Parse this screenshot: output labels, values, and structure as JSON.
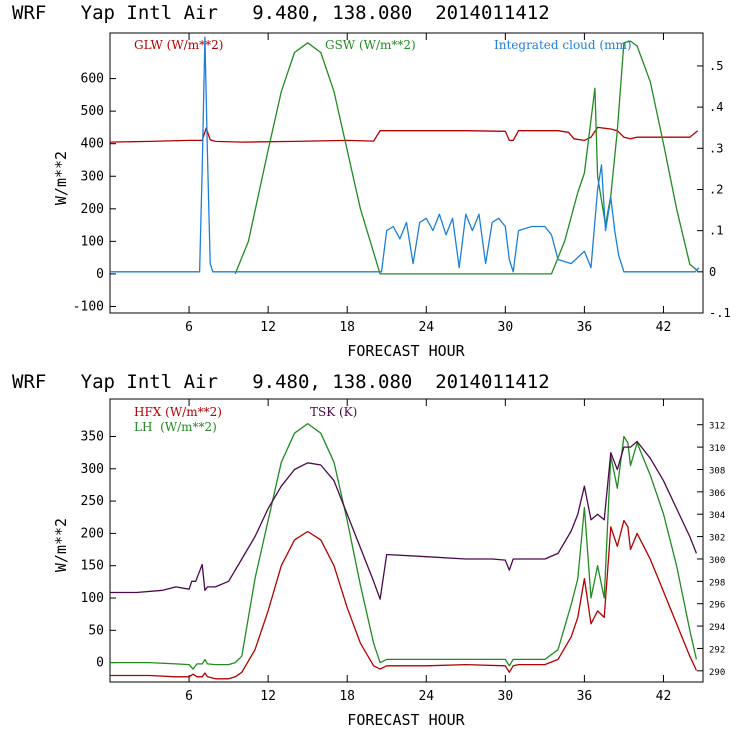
{
  "chart_data": [
    {
      "type": "line",
      "title": "WRF   Yap Intl Air   9.480, 138.080  2014011412",
      "xlabel": "FORECAST HOUR",
      "ylabel": "W/m**2",
      "xlim": [
        0,
        45
      ],
      "ylim": [
        -120,
        740
      ],
      "y2lim": [
        -0.1,
        0.58
      ],
      "xticks": [
        6,
        12,
        18,
        24,
        30,
        36,
        42
      ],
      "yticks": [
        -100,
        0,
        100,
        200,
        300,
        400,
        500,
        600
      ],
      "y2ticks": [
        -0.1,
        0,
        0.1,
        0.2,
        0.3,
        0.4,
        0.5
      ],
      "xtick_labels": [
        "6",
        "12",
        "18",
        "24",
        "30",
        "36",
        "42"
      ],
      "ytick_labels": [
        "-100",
        "0",
        "100",
        "200",
        "300",
        "400",
        "500",
        "600"
      ],
      "y2tick_labels": [
        "-.1",
        "0",
        ".1",
        ".2",
        ".3",
        ".4",
        ".5"
      ],
      "legend": [
        {
          "label": "GLW (W/m**2)",
          "color": "#b30000"
        },
        {
          "label": "GSW (W/m**2)",
          "color": "#228b22"
        },
        {
          "label": "Integrated cloud (mm)",
          "color": "#1e7fd8"
        }
      ],
      "series": [
        {
          "name": "GLW",
          "color": "#b30000",
          "axis": "left",
          "x": [
            0,
            3,
            6,
            7,
            7.3,
            7.6,
            8,
            10,
            14,
            18,
            20,
            20.5,
            24,
            27,
            30,
            30.3,
            30.6,
            31,
            34,
            34.8,
            35.2,
            36,
            36.5,
            37,
            38,
            38.5,
            39,
            39.5,
            40,
            41,
            44,
            44.6
          ],
          "y": [
            405,
            407,
            410,
            410,
            448,
            412,
            407,
            405,
            407,
            410,
            408,
            440,
            440,
            440,
            438,
            410,
            410,
            440,
            440,
            435,
            415,
            410,
            420,
            450,
            445,
            440,
            420,
            415,
            420,
            420,
            420,
            440
          ]
        },
        {
          "name": "GSW",
          "color": "#228b22",
          "axis": "left",
          "x": [
            9.5,
            10.5,
            12,
            13,
            14,
            15,
            16,
            17,
            18,
            19,
            20.5,
            33.5,
            34.5,
            35.5,
            36,
            36.8,
            37,
            37.6,
            38,
            38.5,
            39,
            39.5,
            40,
            41,
            42,
            43,
            44,
            44.6
          ],
          "y": [
            0,
            100,
            380,
            560,
            680,
            710,
            680,
            560,
            380,
            200,
            0,
            0,
            100,
            250,
            310,
            570,
            300,
            150,
            240,
            440,
            710,
            715,
            700,
            590,
            400,
            200,
            30,
            10
          ]
        },
        {
          "name": "Integrated cloud",
          "color": "#1e7fd8",
          "axis": "right",
          "x": [
            0,
            6.8,
            7.0,
            7.2,
            7.4,
            7.6,
            7.8,
            20.6,
            21,
            21.5,
            22,
            22.5,
            23,
            23.5,
            24,
            24.5,
            25,
            25.5,
            26,
            26.5,
            27,
            27.5,
            28,
            28.5,
            29,
            29.5,
            30,
            30.3,
            30.6,
            31,
            32,
            33,
            33.5,
            34,
            35,
            36,
            36.5,
            37,
            37.3,
            37.6,
            38,
            38.3,
            38.6,
            39,
            39.5,
            44.4,
            44.7
          ],
          "y": [
            0,
            0,
            0.25,
            0.57,
            0.28,
            0.02,
            0,
            0,
            0.1,
            0.11,
            0.08,
            0.12,
            0.02,
            0.12,
            0.13,
            0.1,
            0.14,
            0.09,
            0.13,
            0.01,
            0.14,
            0.1,
            0.14,
            0.02,
            0.12,
            0.13,
            0.11,
            0.03,
            0,
            0.1,
            0.11,
            0.11,
            0.09,
            0.03,
            0.02,
            0.05,
            0.01,
            0.2,
            0.26,
            0.1,
            0.18,
            0.1,
            0.04,
            0,
            0,
            0,
            0.01
          ]
        }
      ]
    },
    {
      "type": "line",
      "title": "WRF   Yap Intl Air   9.480, 138.080  2014011412",
      "xlabel": "FORECAST HOUR",
      "ylabel": "W/m**2",
      "xlim": [
        0,
        45
      ],
      "ylim": [
        -30,
        408
      ],
      "y2lim": [
        289,
        314.3
      ],
      "xticks": [
        6,
        12,
        18,
        24,
        30,
        36,
        42
      ],
      "yticks": [
        0,
        50,
        100,
        150,
        200,
        250,
        300,
        350
      ],
      "y2ticks": [
        290,
        292,
        294,
        296,
        298,
        300,
        302,
        304,
        306,
        308,
        310,
        312
      ],
      "xtick_labels": [
        "6",
        "12",
        "18",
        "24",
        "30",
        "36",
        "42"
      ],
      "ytick_labels": [
        "0",
        "50",
        "100",
        "150",
        "200",
        "250",
        "300",
        "350"
      ],
      "y2tick_labels": [
        "290",
        "292",
        "294",
        "296",
        "298",
        "300",
        "302",
        "304",
        "306",
        "308",
        "310",
        "312"
      ],
      "legend": [
        {
          "label": "HFX (W/m**2)",
          "color": "#b30000"
        },
        {
          "label": "LH  (W/m**2)",
          "color": "#228b22"
        },
        {
          "label": "TSK (K)",
          "color": "#4b0a4b"
        }
      ],
      "series": [
        {
          "name": "HFX",
          "color": "#b30000",
          "axis": "left",
          "x": [
            0,
            3,
            5,
            6,
            6.3,
            6.6,
            7,
            7.2,
            7.4,
            8,
            9,
            9.5,
            10,
            11,
            12,
            13,
            14,
            15,
            16,
            17,
            18,
            19,
            20,
            20.5,
            21,
            24,
            27,
            30,
            30.3,
            30.6,
            31,
            33,
            34,
            35,
            35.5,
            36,
            36.5,
            37,
            37.5,
            38,
            38.5,
            39,
            39.3,
            39.5,
            40,
            41,
            42,
            43,
            44,
            44.5
          ],
          "y": [
            -20,
            -20,
            -22,
            -22,
            -18,
            -22,
            -22,
            -16,
            -22,
            -25,
            -25,
            -22,
            -15,
            20,
            80,
            150,
            190,
            203,
            190,
            150,
            85,
            30,
            -5,
            -10,
            -5,
            -5,
            -3,
            -5,
            -15,
            -5,
            -3,
            -3,
            5,
            40,
            70,
            130,
            60,
            80,
            70,
            210,
            180,
            220,
            210,
            175,
            200,
            160,
            110,
            60,
            10,
            -12
          ]
        },
        {
          "name": "LH",
          "color": "#228b22",
          "axis": "left",
          "x": [
            0,
            3,
            5,
            6,
            6.3,
            6.6,
            7,
            7.2,
            7.4,
            8,
            9,
            9.5,
            10,
            11,
            12,
            13,
            14,
            15,
            16,
            17,
            18,
            19,
            20,
            20.5,
            21,
            24,
            27,
            30,
            30.3,
            30.6,
            31,
            33,
            34,
            35,
            35.5,
            36,
            36.5,
            37,
            37.5,
            38,
            38.5,
            39,
            39.3,
            39.5,
            40,
            41,
            42,
            43,
            44,
            44.5
          ],
          "y": [
            0,
            0,
            -2,
            -3,
            -10,
            -2,
            -2,
            5,
            -2,
            -3,
            -3,
            0,
            10,
            130,
            220,
            310,
            355,
            370,
            355,
            310,
            220,
            120,
            30,
            0,
            5,
            5,
            5,
            5,
            -5,
            5,
            5,
            5,
            20,
            90,
            130,
            240,
            100,
            150,
            100,
            320,
            270,
            350,
            340,
            305,
            340,
            290,
            230,
            150,
            50,
            5
          ]
        },
        {
          "name": "TSK",
          "color": "#4b0a4b",
          "axis": "right",
          "x": [
            0,
            2,
            4,
            5,
            6,
            6.2,
            6.5,
            7,
            7.2,
            7.4,
            8,
            9,
            10,
            11,
            12,
            13,
            14,
            15,
            16,
            17,
            18,
            19,
            20,
            20.5,
            21,
            24,
            27,
            29,
            30,
            30.3,
            30.6,
            31,
            33,
            34,
            35,
            35.5,
            36,
            36.5,
            37,
            37.5,
            38,
            38.5,
            39,
            39.5,
            40,
            41,
            42,
            43,
            44,
            44.5
          ],
          "y": [
            297,
            297,
            297.2,
            297.5,
            297.3,
            298,
            298,
            299.5,
            297.2,
            297.5,
            297.5,
            298,
            300,
            302,
            304.5,
            306.5,
            308,
            308.6,
            308.4,
            307,
            304,
            301,
            298,
            296.4,
            300.4,
            300.2,
            300,
            300,
            299.9,
            299,
            300,
            300,
            300,
            300.5,
            302.5,
            304,
            306.5,
            303.5,
            304,
            303.5,
            309.5,
            308,
            310,
            310,
            310.5,
            309,
            307,
            304.5,
            302,
            300.5
          ]
        }
      ]
    }
  ]
}
